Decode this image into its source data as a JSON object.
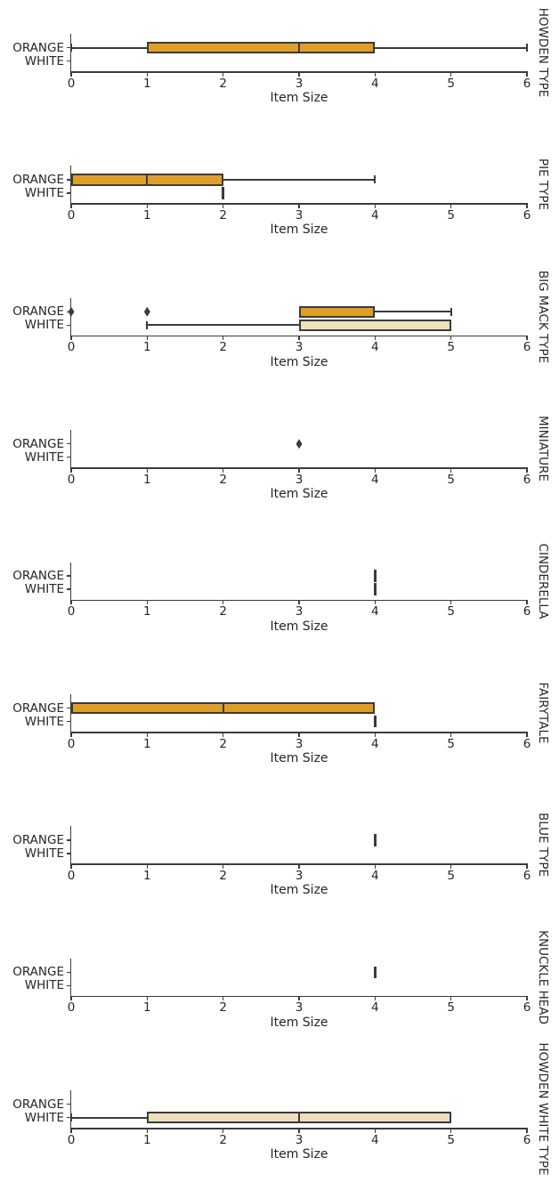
{
  "figure": {
    "background": "#ffffff",
    "text_color": "#262626",
    "line_color": "#3B3B3B"
  },
  "chart_data": {
    "type": "boxplot",
    "orientation": "horizontal",
    "title": "",
    "xlabel": "Item Size",
    "ylabel": "",
    "xlim": [
      0,
      6
    ],
    "xticks": [
      0,
      1,
      2,
      3,
      4,
      5,
      6
    ],
    "categories": [
      "ORANGE",
      "WHITE"
    ],
    "grid": false,
    "legend": null,
    "palette": {
      "ORANGE": "#DF9E27",
      "WHITE": "#EEDFBD"
    },
    "facets": [
      {
        "title": "HOWDEN TYPE",
        "boxes": [
          {
            "group": "ORANGE",
            "whisker_low": 0,
            "q1": 1,
            "median": 3,
            "q3": 4,
            "whisker_high": 6,
            "outliers": []
          }
        ]
      },
      {
        "title": "PIE TYPE",
        "boxes": [
          {
            "group": "ORANGE",
            "whisker_low": 0,
            "q1": 0,
            "median": 1,
            "q3": 2,
            "whisker_high": 4,
            "outliers": []
          },
          {
            "group": "WHITE",
            "value": 2,
            "outliers": []
          }
        ]
      },
      {
        "title": "BIG MACK TYPE",
        "boxes": [
          {
            "group": "ORANGE",
            "whisker_low": 3,
            "q1": 3,
            "median": null,
            "q3": 4,
            "whisker_high": 5,
            "outliers": [
              0,
              1
            ]
          },
          {
            "group": "WHITE",
            "whisker_low": 1,
            "q1": 3,
            "median": null,
            "q3": 5,
            "whisker_high": 5,
            "outliers": []
          }
        ]
      },
      {
        "title": "MINIATURE",
        "boxes": [
          {
            "group": "ORANGE",
            "outliers": [
              3
            ]
          }
        ]
      },
      {
        "title": "CINDERELLA",
        "boxes": [
          {
            "group": "ORANGE",
            "value": 4,
            "outliers": []
          },
          {
            "group": "WHITE",
            "value": 4,
            "outliers": []
          }
        ]
      },
      {
        "title": "FAIRYTALE",
        "boxes": [
          {
            "group": "ORANGE",
            "whisker_low": 0,
            "q1": 0,
            "median": 2,
            "q3": 4,
            "whisker_high": 4,
            "outliers": []
          },
          {
            "group": "WHITE",
            "value": 4,
            "outliers": []
          }
        ]
      },
      {
        "title": "BLUE TYPE",
        "boxes": [
          {
            "group": "ORANGE",
            "value": 4,
            "outliers": []
          }
        ]
      },
      {
        "title": "KNUCKLE HEAD",
        "boxes": [
          {
            "group": "ORANGE",
            "value": 4,
            "outliers": []
          }
        ]
      },
      {
        "title": "HOWDEN WHITE TYPE",
        "boxes": [
          {
            "group": "WHITE",
            "whisker_low": 0,
            "q1": 1,
            "median": 3,
            "q3": 5,
            "whisker_high": 5,
            "outliers": []
          }
        ]
      }
    ]
  }
}
